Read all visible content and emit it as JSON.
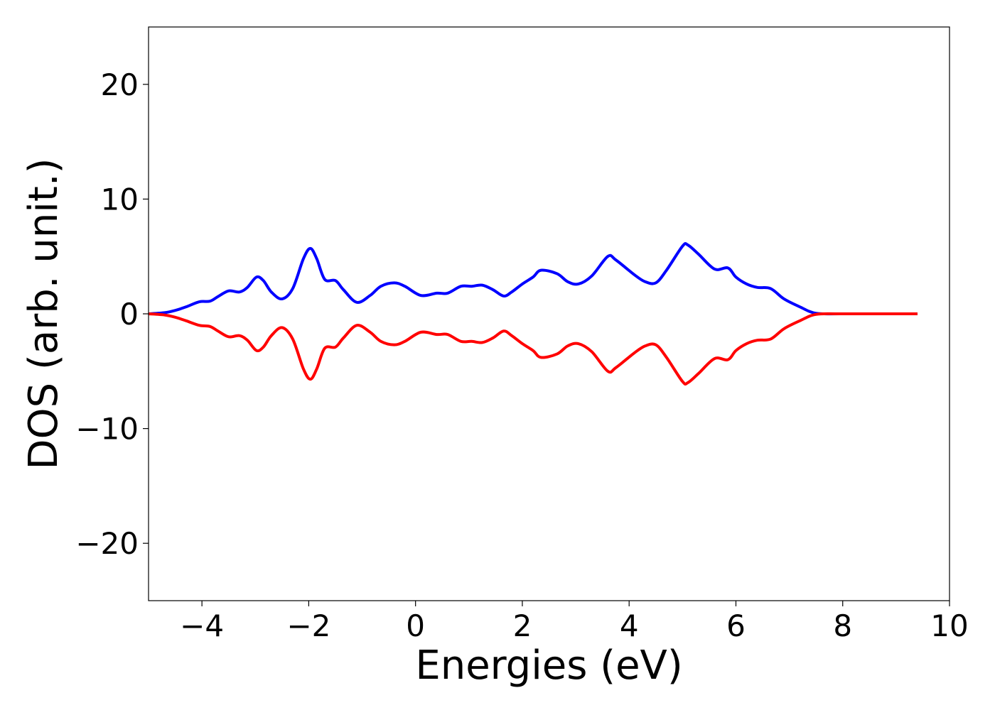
{
  "chart_data": {
    "type": "line",
    "title": "",
    "xlabel": "Energies (eV)",
    "ylabel": "DOS (arb. unit.)",
    "xlim": [
      -5,
      10
    ],
    "ylim": [
      -25,
      25
    ],
    "grid": false,
    "legend": null,
    "x_ticks": [
      {
        "value": -4,
        "label": "−4"
      },
      {
        "value": -2,
        "label": "−2"
      },
      {
        "value": 0,
        "label": "0"
      },
      {
        "value": 2,
        "label": "2"
      },
      {
        "value": 4,
        "label": "4"
      },
      {
        "value": 6,
        "label": "6"
      },
      {
        "value": 8,
        "label": "8"
      },
      {
        "value": 10,
        "label": "10"
      }
    ],
    "y_ticks": [
      {
        "value": 20,
        "label": "20"
      },
      {
        "value": 10,
        "label": "10"
      },
      {
        "value": 0,
        "label": "0"
      },
      {
        "value": -10,
        "label": "−10"
      },
      {
        "value": -20,
        "label": "−20"
      }
    ],
    "series": [
      {
        "color": "#0000ff",
        "points": [
          [
            -5.0,
            0.0
          ],
          [
            -4.7,
            0.1
          ],
          [
            -4.5,
            0.3
          ],
          [
            -4.3,
            0.6
          ],
          [
            -4.05,
            1.05
          ],
          [
            -3.85,
            1.1
          ],
          [
            -3.7,
            1.5
          ],
          [
            -3.5,
            2.0
          ],
          [
            -3.3,
            1.9
          ],
          [
            -3.15,
            2.3
          ],
          [
            -2.98,
            3.2
          ],
          [
            -2.85,
            2.9
          ],
          [
            -2.7,
            1.9
          ],
          [
            -2.5,
            1.3
          ],
          [
            -2.3,
            2.2
          ],
          [
            -2.1,
            4.8
          ],
          [
            -1.97,
            5.7
          ],
          [
            -1.85,
            4.8
          ],
          [
            -1.7,
            3.0
          ],
          [
            -1.5,
            2.9
          ],
          [
            -1.35,
            2.1
          ],
          [
            -1.1,
            1.0
          ],
          [
            -0.85,
            1.6
          ],
          [
            -0.65,
            2.4
          ],
          [
            -0.4,
            2.7
          ],
          [
            -0.2,
            2.4
          ],
          [
            0.1,
            1.6
          ],
          [
            0.4,
            1.8
          ],
          [
            0.6,
            1.8
          ],
          [
            0.85,
            2.4
          ],
          [
            1.05,
            2.4
          ],
          [
            1.25,
            2.5
          ],
          [
            1.45,
            2.1
          ],
          [
            1.65,
            1.55
          ],
          [
            1.8,
            1.9
          ],
          [
            2.0,
            2.6
          ],
          [
            2.2,
            3.2
          ],
          [
            2.35,
            3.8
          ],
          [
            2.65,
            3.5
          ],
          [
            2.85,
            2.8
          ],
          [
            3.05,
            2.6
          ],
          [
            3.3,
            3.3
          ],
          [
            3.6,
            5.0
          ],
          [
            3.75,
            4.7
          ],
          [
            4.1,
            3.4
          ],
          [
            4.3,
            2.8
          ],
          [
            4.5,
            2.7
          ],
          [
            4.7,
            3.8
          ],
          [
            5.0,
            5.9
          ],
          [
            5.1,
            6.0
          ],
          [
            5.3,
            5.2
          ],
          [
            5.6,
            3.9
          ],
          [
            5.85,
            4.0
          ],
          [
            6.0,
            3.2
          ],
          [
            6.2,
            2.6
          ],
          [
            6.4,
            2.3
          ],
          [
            6.65,
            2.2
          ],
          [
            6.9,
            1.3
          ],
          [
            7.2,
            0.6
          ],
          [
            7.5,
            0.05
          ],
          [
            8.0,
            0.0
          ],
          [
            9.4,
            0.0
          ]
        ]
      },
      {
        "color": "#ff0000",
        "points": [
          [
            -5.0,
            0.0
          ],
          [
            -4.7,
            -0.1
          ],
          [
            -4.5,
            -0.3
          ],
          [
            -4.3,
            -0.6
          ],
          [
            -4.05,
            -1.0
          ],
          [
            -3.85,
            -1.1
          ],
          [
            -3.7,
            -1.5
          ],
          [
            -3.5,
            -2.0
          ],
          [
            -3.3,
            -1.9
          ],
          [
            -3.15,
            -2.3
          ],
          [
            -2.98,
            -3.2
          ],
          [
            -2.85,
            -2.9
          ],
          [
            -2.7,
            -1.9
          ],
          [
            -2.5,
            -1.2
          ],
          [
            -2.3,
            -2.2
          ],
          [
            -2.1,
            -4.8
          ],
          [
            -1.97,
            -5.7
          ],
          [
            -1.85,
            -4.8
          ],
          [
            -1.7,
            -3.0
          ],
          [
            -1.5,
            -2.9
          ],
          [
            -1.35,
            -2.1
          ],
          [
            -1.1,
            -1.0
          ],
          [
            -0.85,
            -1.6
          ],
          [
            -0.65,
            -2.4
          ],
          [
            -0.4,
            -2.7
          ],
          [
            -0.2,
            -2.4
          ],
          [
            0.1,
            -1.6
          ],
          [
            0.4,
            -1.8
          ],
          [
            0.6,
            -1.8
          ],
          [
            0.85,
            -2.4
          ],
          [
            1.05,
            -2.4
          ],
          [
            1.25,
            -2.5
          ],
          [
            1.45,
            -2.1
          ],
          [
            1.65,
            -1.5
          ],
          [
            1.8,
            -1.9
          ],
          [
            2.0,
            -2.6
          ],
          [
            2.2,
            -3.2
          ],
          [
            2.35,
            -3.8
          ],
          [
            2.65,
            -3.5
          ],
          [
            2.85,
            -2.8
          ],
          [
            3.05,
            -2.6
          ],
          [
            3.3,
            -3.3
          ],
          [
            3.6,
            -5.0
          ],
          [
            3.75,
            -4.7
          ],
          [
            4.1,
            -3.4
          ],
          [
            4.3,
            -2.8
          ],
          [
            4.5,
            -2.7
          ],
          [
            4.7,
            -3.8
          ],
          [
            5.0,
            -5.9
          ],
          [
            5.1,
            -6.0
          ],
          [
            5.3,
            -5.2
          ],
          [
            5.6,
            -3.9
          ],
          [
            5.85,
            -4.0
          ],
          [
            6.0,
            -3.2
          ],
          [
            6.2,
            -2.6
          ],
          [
            6.4,
            -2.3
          ],
          [
            6.65,
            -2.2
          ],
          [
            6.9,
            -1.3
          ],
          [
            7.2,
            -0.6
          ],
          [
            7.5,
            -0.05
          ],
          [
            8.0,
            0.0
          ],
          [
            9.4,
            0.0
          ]
        ]
      }
    ]
  }
}
